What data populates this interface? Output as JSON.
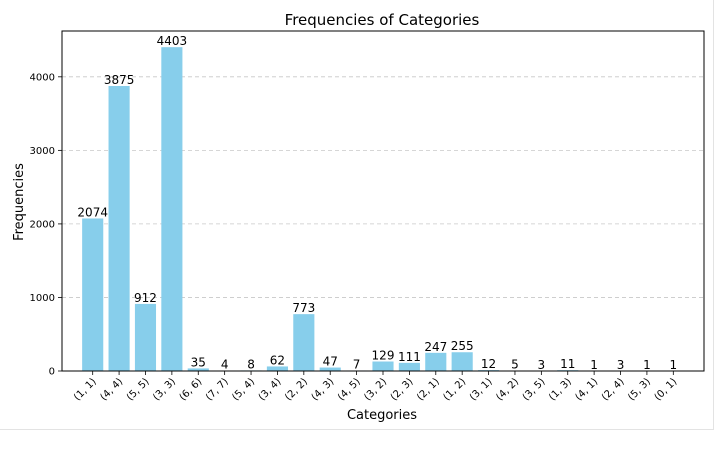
{
  "chart_data": {
    "type": "bar",
    "title": "Frequencies of Categories",
    "xlabel": "Categories",
    "ylabel": "Frequencies",
    "categories": [
      "(1, 1)",
      "(4, 4)",
      "(5, 5)",
      "(3, 3)",
      "(6, 6)",
      "(7, 7)",
      "(5, 4)",
      "(3, 4)",
      "(2, 2)",
      "(4, 3)",
      "(4, 5)",
      "(3, 2)",
      "(2, 3)",
      "(2, 1)",
      "(1, 2)",
      "(3, 1)",
      "(4, 2)",
      "(3, 5)",
      "(1, 3)",
      "(4, 1)",
      "(2, 4)",
      "(5, 3)",
      "(0, 1)"
    ],
    "values": [
      2074,
      3875,
      912,
      4403,
      35,
      4,
      8,
      62,
      773,
      47,
      7,
      129,
      111,
      247,
      255,
      12,
      5,
      3,
      11,
      1,
      3,
      1,
      1
    ],
    "ylim": [
      0,
      4623
    ],
    "yticks": [
      0,
      1000,
      2000,
      3000,
      4000
    ],
    "grid": "y-axis dashed",
    "bar_color": "#87ceeb"
  }
}
